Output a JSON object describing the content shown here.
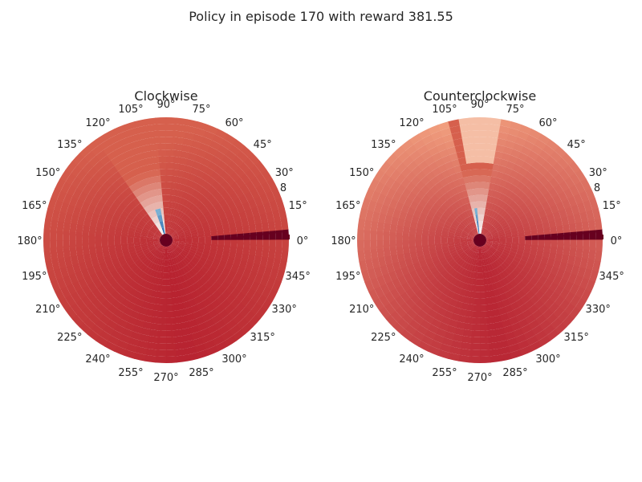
{
  "title": "Policy in episode 170 with reward 381.55",
  "chart_data": [
    {
      "type": "heatmap",
      "projection": "polar",
      "title": "Clockwise",
      "angle_ticks": [
        "0°",
        "15°",
        "30°",
        "45°",
        "60°",
        "75°",
        "90°",
        "105°",
        "120°",
        "135°",
        "150°",
        "165°",
        "180°",
        "195°",
        "210°",
        "225°",
        "240°",
        "255°",
        "270°",
        "285°",
        "300°",
        "315°",
        "330°",
        "345°"
      ],
      "radial_tick": "8",
      "colormap": "RdBu",
      "colors": {
        "dark_red": "#67001f",
        "red": "#b2182b",
        "mid_red": "#d6604d",
        "light": "#f4a582",
        "white": "#f7f7f7",
        "light_blue": "#92c5de",
        "blue": "#4393c3",
        "dark_blue": "#2166ac"
      },
      "features": {
        "bright_wedge_angle_deg": [
          95,
          125
        ],
        "blue_wedge_angle_deg": [
          100,
          112
        ],
        "light_wedge_near_90": false
      }
    },
    {
      "type": "heatmap",
      "projection": "polar",
      "title": "Counterclockwise",
      "angle_ticks": [
        "0°",
        "15°",
        "30°",
        "45°",
        "60°",
        "75°",
        "90°",
        "105°",
        "120°",
        "135°",
        "150°",
        "165°",
        "180°",
        "195°",
        "210°",
        "225°",
        "240°",
        "255°",
        "270°",
        "285°",
        "300°",
        "315°",
        "330°",
        "345°"
      ],
      "radial_tick": "8",
      "colormap": "RdBu",
      "colors": {
        "dark_red": "#67001f",
        "red": "#b2182b",
        "mid_red": "#d6604d",
        "light": "#f4a582",
        "white": "#f7f7f7",
        "light_blue": "#92c5de",
        "blue": "#4393c3",
        "dark_blue": "#2166ac"
      },
      "features": {
        "bright_wedge_angle_deg": [
          80,
          105
        ],
        "blue_wedge_angle_deg": [
          95,
          100
        ],
        "light_wedge_near_90": true
      }
    }
  ]
}
